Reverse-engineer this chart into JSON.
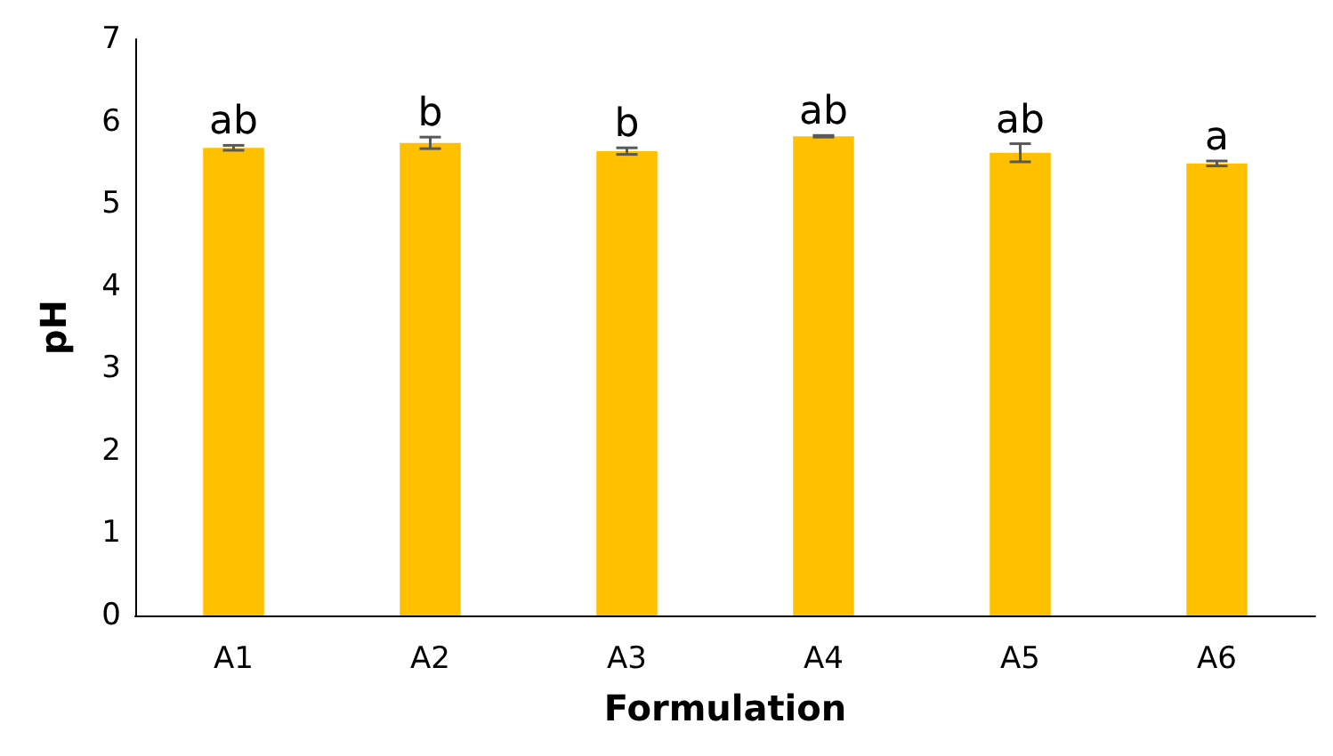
{
  "chart_data": {
    "type": "bar",
    "xlabel": "Formulation",
    "ylabel": "pH",
    "categories": [
      "A1",
      "A2",
      "A3",
      "A4",
      "A5",
      "A6"
    ],
    "values": [
      5.68,
      5.74,
      5.64,
      5.82,
      5.62,
      5.49
    ],
    "errors": [
      0.03,
      0.07,
      0.04,
      0.01,
      0.11,
      0.03
    ],
    "color": "#ffc000",
    "ylim": [
      0,
      7
    ],
    "yticks": [
      0,
      1,
      2,
      3,
      4,
      5,
      6,
      7
    ],
    "grid": false,
    "annotations": [
      {
        "text": "ab",
        "x": "A1",
        "y": 5.71
      },
      {
        "text": "b",
        "x": "A2",
        "y": 5.81
      },
      {
        "text": "b",
        "x": "A3",
        "y": 5.68
      },
      {
        "text": "ab",
        "x": "A4",
        "y": 5.83
      },
      {
        "text": "ab",
        "x": "A5",
        "y": 5.73
      },
      {
        "text": "a",
        "x": "A6",
        "y": 5.52
      }
    ]
  }
}
